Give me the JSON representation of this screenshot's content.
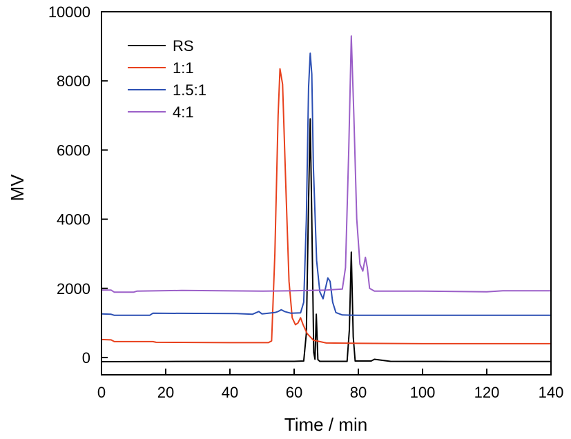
{
  "chart_data": {
    "type": "line",
    "title": "",
    "xlabel": "Time / min",
    "ylabel": "MV",
    "xlim": [
      0,
      140
    ],
    "ylim": [
      -500,
      10000
    ],
    "xticks": [
      0,
      20,
      40,
      60,
      80,
      100,
      120,
      140
    ],
    "yticks": [
      0,
      2000,
      4000,
      6000,
      8000,
      10000
    ],
    "grid": false,
    "legend_position": "top-left",
    "series": [
      {
        "name": "RS",
        "color": "#000000",
        "points": [
          [
            0,
            -120
          ],
          [
            20,
            -115
          ],
          [
            40,
            -110
          ],
          [
            60,
            -110
          ],
          [
            63,
            -100
          ],
          [
            63.8,
            700
          ],
          [
            64.5,
            4500
          ],
          [
            65,
            6900
          ],
          [
            65.5,
            4000
          ],
          [
            66.1,
            150
          ],
          [
            66.5,
            -50
          ],
          [
            66.9,
            1250
          ],
          [
            67.4,
            -60
          ],
          [
            68,
            -110
          ],
          [
            76.5,
            -110
          ],
          [
            77.2,
            800
          ],
          [
            77.8,
            3050
          ],
          [
            78.4,
            600
          ],
          [
            79,
            -100
          ],
          [
            84,
            -100
          ],
          [
            85,
            -50
          ],
          [
            90,
            -110
          ],
          [
            110,
            -115
          ],
          [
            140,
            -115
          ]
        ]
      },
      {
        "name": "1:1",
        "color": "#e8401c",
        "points": [
          [
            0,
            520
          ],
          [
            3,
            510
          ],
          [
            4,
            460
          ],
          [
            16,
            460
          ],
          [
            17,
            440
          ],
          [
            40,
            430
          ],
          [
            52,
            430
          ],
          [
            53,
            480
          ],
          [
            54,
            3000
          ],
          [
            55,
            7000
          ],
          [
            55.6,
            8350
          ],
          [
            56.4,
            7900
          ],
          [
            57.4,
            5000
          ],
          [
            58.4,
            2200
          ],
          [
            59.4,
            1150
          ],
          [
            60.4,
            950
          ],
          [
            61.2,
            1000
          ],
          [
            62,
            1150
          ],
          [
            62.8,
            950
          ],
          [
            64,
            700
          ],
          [
            66,
            500
          ],
          [
            70,
            420
          ],
          [
            80,
            410
          ],
          [
            100,
            400
          ],
          [
            140,
            400
          ]
        ]
      },
      {
        "name": "1.5:1",
        "color": "#2b4fb3",
        "points": [
          [
            0,
            1260
          ],
          [
            3,
            1250
          ],
          [
            4,
            1220
          ],
          [
            15,
            1220
          ],
          [
            16,
            1280
          ],
          [
            42,
            1270
          ],
          [
            47,
            1250
          ],
          [
            49,
            1330
          ],
          [
            50,
            1260
          ],
          [
            52,
            1280
          ],
          [
            54,
            1300
          ],
          [
            55,
            1330
          ],
          [
            56,
            1380
          ],
          [
            57,
            1330
          ],
          [
            59,
            1280
          ],
          [
            62,
            1290
          ],
          [
            63,
            1600
          ],
          [
            63.8,
            4000
          ],
          [
            64.5,
            7800
          ],
          [
            65,
            8800
          ],
          [
            65.5,
            8200
          ],
          [
            66,
            5500
          ],
          [
            67,
            2800
          ],
          [
            68,
            1900
          ],
          [
            69,
            1700
          ],
          [
            70,
            2100
          ],
          [
            70.5,
            2300
          ],
          [
            71.2,
            2200
          ],
          [
            72,
            1600
          ],
          [
            73,
            1300
          ],
          [
            75,
            1230
          ],
          [
            80,
            1220
          ],
          [
            100,
            1220
          ],
          [
            140,
            1220
          ]
        ]
      },
      {
        "name": "4:1",
        "color": "#9b5fc8",
        "points": [
          [
            0,
            1950
          ],
          [
            3,
            1950
          ],
          [
            4,
            1890
          ],
          [
            10,
            1890
          ],
          [
            11,
            1920
          ],
          [
            25,
            1940
          ],
          [
            50,
            1920
          ],
          [
            60,
            1930
          ],
          [
            70,
            1950
          ],
          [
            75,
            1980
          ],
          [
            76,
            2600
          ],
          [
            77,
            6000
          ],
          [
            77.8,
            9300
          ],
          [
            78.6,
            7000
          ],
          [
            79.5,
            4000
          ],
          [
            80.5,
            2700
          ],
          [
            81.4,
            2500
          ],
          [
            82.2,
            2900
          ],
          [
            82.8,
            2600
          ],
          [
            83.5,
            2000
          ],
          [
            85,
            1920
          ],
          [
            100,
            1920
          ],
          [
            120,
            1900
          ],
          [
            125,
            1930
          ],
          [
            140,
            1930
          ]
        ]
      }
    ]
  }
}
